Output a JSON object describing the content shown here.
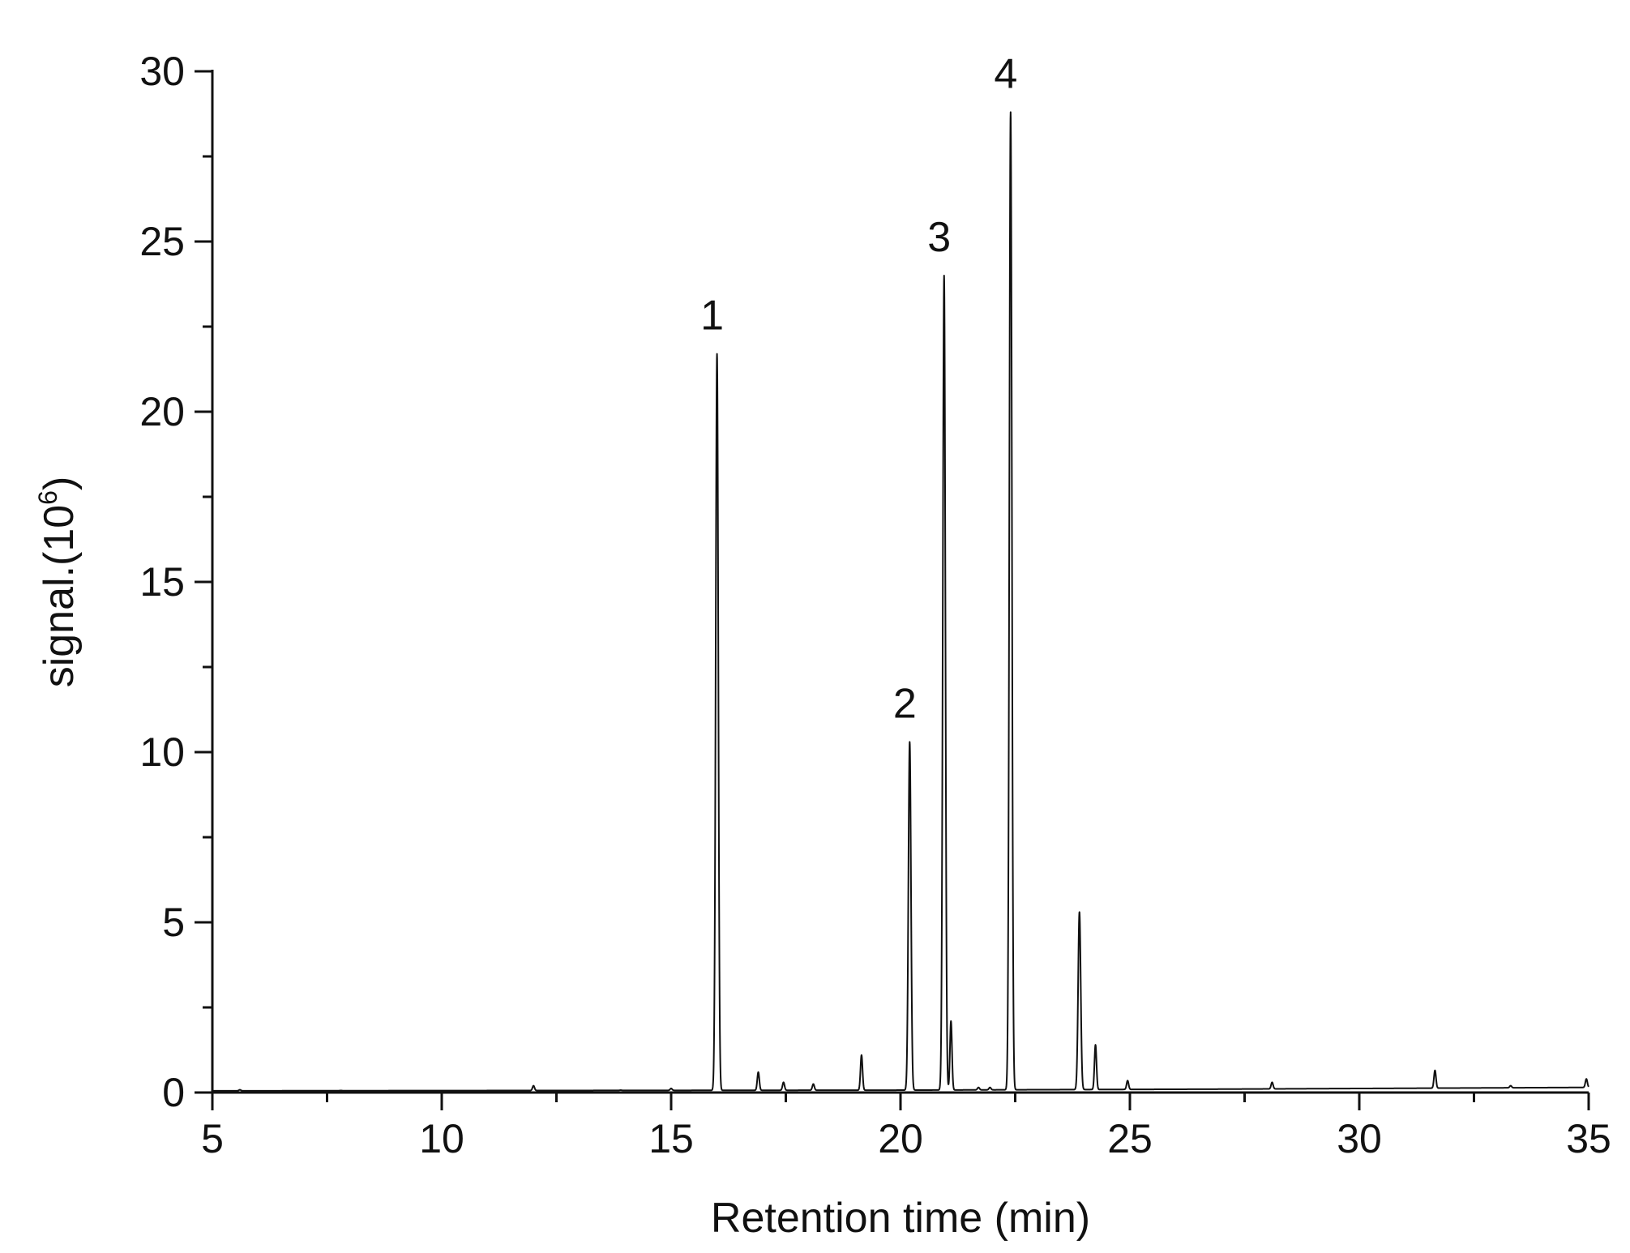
{
  "chart_data": {
    "type": "line",
    "title": "",
    "xlabel": "Retention time (min)",
    "ylabel": {
      "base": "signal.(10",
      "superscript": "6",
      "close": ")"
    },
    "xlim": [
      5,
      35
    ],
    "ylim": [
      0,
      30
    ],
    "x_ticks": [
      5,
      10,
      15,
      20,
      25,
      30,
      35
    ],
    "y_ticks": [
      0,
      5,
      10,
      15,
      20,
      25,
      30
    ],
    "grid": false,
    "legend": "none",
    "line_color": "#111111",
    "baseline": {
      "x": [
        5,
        20,
        27,
        35
      ],
      "y": [
        0.05,
        0.07,
        0.1,
        0.15
      ]
    },
    "peaks": [
      {
        "x": 5.6,
        "y": 0.08,
        "label": ""
      },
      {
        "x": 7.8,
        "y": 0.06,
        "label": ""
      },
      {
        "x": 12.0,
        "y": 0.2,
        "label": ""
      },
      {
        "x": 13.9,
        "y": 0.07,
        "label": ""
      },
      {
        "x": 15.0,
        "y": 0.12,
        "label": ""
      },
      {
        "x": 16.0,
        "y": 21.7,
        "label": "1"
      },
      {
        "x": 16.9,
        "y": 0.6,
        "label": ""
      },
      {
        "x": 17.45,
        "y": 0.3,
        "label": ""
      },
      {
        "x": 18.1,
        "y": 0.25,
        "label": ""
      },
      {
        "x": 19.15,
        "y": 1.1,
        "label": ""
      },
      {
        "x": 20.2,
        "y": 10.3,
        "label": "2"
      },
      {
        "x": 20.95,
        "y": 24.0,
        "label": "3"
      },
      {
        "x": 21.1,
        "y": 2.1,
        "label": ""
      },
      {
        "x": 21.7,
        "y": 0.15,
        "label": ""
      },
      {
        "x": 21.95,
        "y": 0.15,
        "label": ""
      },
      {
        "x": 22.4,
        "y": 28.8,
        "label": "4"
      },
      {
        "x": 23.9,
        "y": 5.3,
        "label": ""
      },
      {
        "x": 24.25,
        "y": 1.4,
        "label": ""
      },
      {
        "x": 24.95,
        "y": 0.35,
        "label": ""
      },
      {
        "x": 28.1,
        "y": 0.3,
        "label": ""
      },
      {
        "x": 31.65,
        "y": 0.65,
        "label": ""
      },
      {
        "x": 33.3,
        "y": 0.2,
        "label": ""
      },
      {
        "x": 34.95,
        "y": 0.4,
        "label": ""
      }
    ]
  }
}
